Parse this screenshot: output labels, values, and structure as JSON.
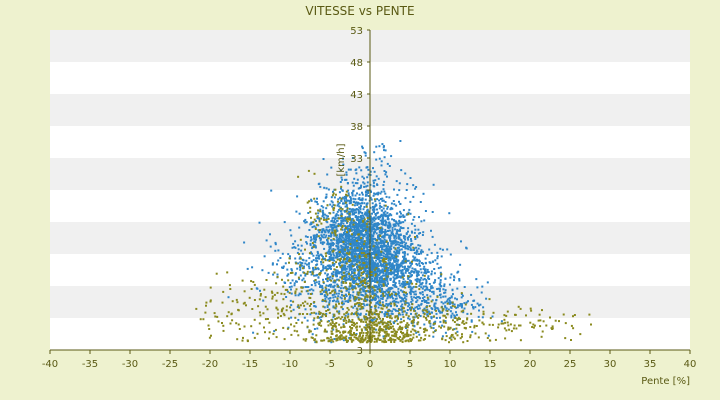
{
  "chart_data": {
    "type": "scatter",
    "title": "VITESSE vs PENTE",
    "xlabel": "Pente [%]",
    "ylabel": "[km/h]",
    "xlim": [
      -40,
      40
    ],
    "ylim": [
      3,
      53
    ],
    "x_ticks": [
      -40,
      -35,
      -30,
      -25,
      -20,
      -15,
      -10,
      -5,
      0,
      5,
      10,
      15,
      20,
      25,
      30,
      35,
      40
    ],
    "y_ticks": [
      3,
      8,
      13,
      18,
      23,
      28,
      33,
      38,
      43,
      48,
      53
    ],
    "y_tick_labels": [
      "3",
      "",
      "",
      "",
      "",
      "",
      "33",
      "38",
      "43",
      "48",
      "53"
    ],
    "grid": true,
    "legend": "none",
    "colors": {
      "page_bg": "#eef2cf",
      "plot_bg": "#ffffff",
      "band": "#f0f0f0",
      "axis": "#5a5a14",
      "series_blue": "#2f86c8",
      "series_olive": "#8a8a1e"
    },
    "series": [
      {
        "color": "#2f86c8",
        "clusters": [
          {
            "cx": 0,
            "cy": 18,
            "sx": 3.2,
            "sy": 4.5,
            "n": 1700
          },
          {
            "cx": -2,
            "cy": 22,
            "sx": 2.5,
            "sy": 3.5,
            "n": 700
          },
          {
            "cx": 3,
            "cy": 14,
            "sx": 3.5,
            "sy": 3.0,
            "n": 600
          },
          {
            "cx": -6,
            "cy": 15,
            "sx": 3.5,
            "sy": 4.0,
            "n": 350
          },
          {
            "cx": 8,
            "cy": 10,
            "sx": 3.5,
            "sy": 2.0,
            "n": 250
          },
          {
            "cx": 0,
            "cy": 30,
            "sx": 2.0,
            "sy": 2.5,
            "n": 80
          }
        ]
      },
      {
        "color": "#8a8a1e",
        "clusters": [
          {
            "cx": 0,
            "cy": 6,
            "sx": 3.0,
            "sy": 1.5,
            "n": 350
          },
          {
            "cx": -8,
            "cy": 10,
            "sx": 5.5,
            "sy": 3.5,
            "n": 250
          },
          {
            "cx": 10,
            "cy": 7,
            "sx": 6.0,
            "sy": 1.8,
            "n": 220
          },
          {
            "cx": -1,
            "cy": 14,
            "sx": 3.0,
            "sy": 5.0,
            "n": 250
          },
          {
            "cx": -4,
            "cy": 24,
            "sx": 2.0,
            "sy": 3.0,
            "n": 80
          },
          {
            "cx": 22,
            "cy": 7,
            "sx": 4.0,
            "sy": 1.0,
            "n": 40
          },
          {
            "cx": -18,
            "cy": 9,
            "sx": 3.0,
            "sy": 3.0,
            "n": 40
          }
        ]
      }
    ]
  }
}
